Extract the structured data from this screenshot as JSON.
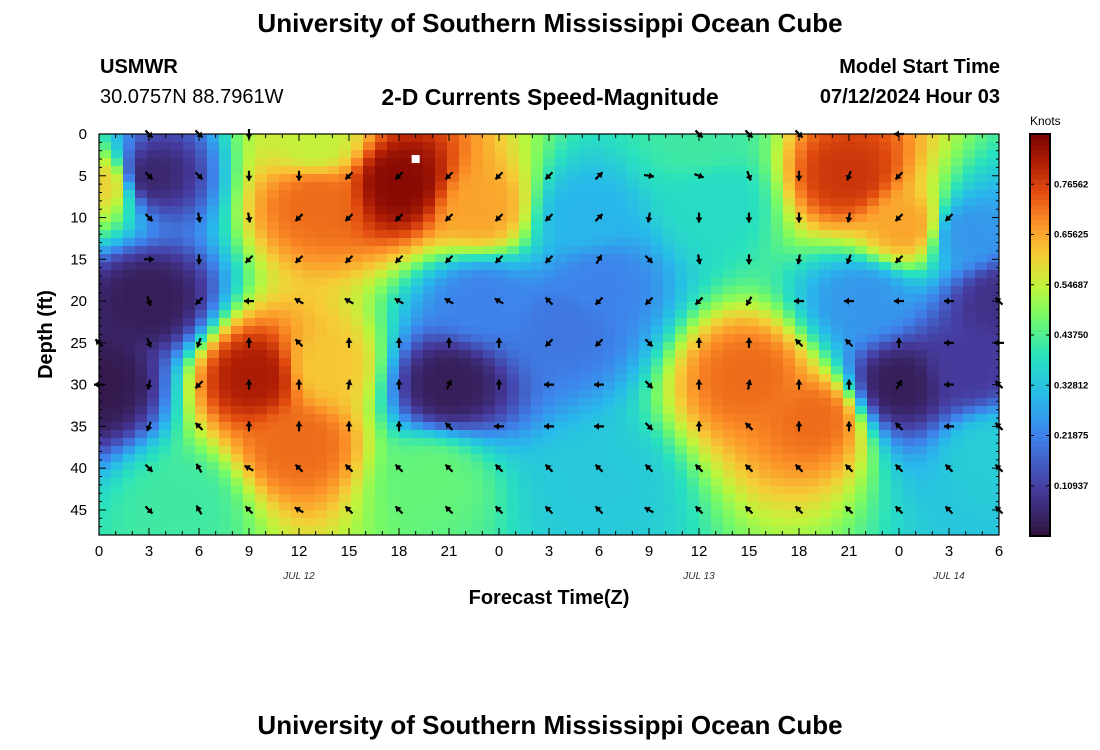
{
  "page": {
    "title_top": "University of Southern Mississippi Ocean Cube",
    "title_bottom": "University of Southern Mississippi Ocean Cube",
    "station": "USMWR",
    "coords": "30.0757N  88.7961W",
    "subtitle": "2-D Currents Speed-Magnitude",
    "model_label": "Model Start Time",
    "model_time": "07/12/2024 Hour 03"
  },
  "chart_data": {
    "type": "heatmap",
    "title": "2-D Currents Speed-Magnitude",
    "xlabel": "Forecast Time(Z)",
    "ylabel": "Depth (ft)",
    "x_ticks": [
      "0",
      "3",
      "6",
      "9",
      "12",
      "15",
      "18",
      "21",
      "0",
      "3",
      "6",
      "9",
      "12",
      "15",
      "18",
      "21",
      "0",
      "3",
      "6"
    ],
    "x_range_hours": [
      0,
      54
    ],
    "date_labels": [
      {
        "text": "JUL 12",
        "hour": 12
      },
      {
        "text": "JUL 13",
        "hour": 36
      },
      {
        "text": "JUL 14",
        "hour": 51
      }
    ],
    "y_ticks": [
      0,
      5,
      10,
      15,
      20,
      25,
      30,
      35,
      40,
      45
    ],
    "y_range_ft": [
      0,
      48
    ],
    "colorbar": {
      "label": "Knots",
      "range": [
        0.0,
        0.875
      ],
      "tick_values": [
        0.10937,
        0.21875,
        0.32812,
        0.4375,
        0.54687,
        0.65625,
        0.76562
      ],
      "tick_labels": [
        "0.10937",
        "0.21875",
        "0.32812",
        "0.43750",
        "0.54687",
        "0.65625",
        "0.76562"
      ]
    },
    "speed_centers_knots": [
      {
        "hour": 18,
        "depth": 6,
        "speed": 0.86
      },
      {
        "hour": 13,
        "depth": 8,
        "speed": 0.72
      },
      {
        "hour": 23,
        "depth": 9,
        "speed": 0.66
      },
      {
        "hour": 13,
        "depth": 1,
        "speed": 0.55
      },
      {
        "hour": 0.3,
        "depth": 6,
        "speed": 0.6
      },
      {
        "hour": 45,
        "depth": 5,
        "speed": 0.78
      },
      {
        "hour": 48.5,
        "depth": 11,
        "speed": 0.66
      },
      {
        "hour": 9.5,
        "depth": 29,
        "speed": 0.82
      },
      {
        "hour": 12,
        "depth": 37,
        "speed": 0.72
      },
      {
        "hour": 13.5,
        "depth": 28,
        "speed": 0.62
      },
      {
        "hour": 39,
        "depth": 29,
        "speed": 0.72
      },
      {
        "hour": 43,
        "depth": 34,
        "speed": 0.72
      },
      {
        "hour": 36,
        "depth": 1,
        "speed": 0.42
      },
      {
        "hour": 37,
        "depth": 8,
        "speed": 0.38
      },
      {
        "hour": 30,
        "depth": 42,
        "speed": 0.34
      },
      {
        "hour": 20,
        "depth": 41,
        "speed": 0.46
      },
      {
        "hour": 3,
        "depth": 5,
        "speed": 0.05
      },
      {
        "hour": 3,
        "depth": 20,
        "speed": 0.03
      },
      {
        "hour": 0,
        "depth": 30,
        "speed": 0.02
      },
      {
        "hour": 21,
        "depth": 30,
        "speed": 0.03
      },
      {
        "hour": 23,
        "depth": 20,
        "speed": 0.22
      },
      {
        "hour": 28,
        "depth": 23,
        "speed": 0.2
      },
      {
        "hour": 30,
        "depth": 18,
        "speed": 0.22
      },
      {
        "hour": 29,
        "depth": 10,
        "speed": 0.3
      },
      {
        "hour": 48,
        "depth": 30,
        "speed": 0.03
      },
      {
        "hour": 52,
        "depth": 28,
        "speed": 0.1
      },
      {
        "hour": 54,
        "depth": 20,
        "speed": 0.08
      },
      {
        "hour": 52,
        "depth": 12,
        "speed": 0.25
      },
      {
        "hour": 46,
        "depth": 20,
        "speed": 0.25
      },
      {
        "hour": 53.5,
        "depth": 38,
        "speed": 0.35
      },
      {
        "hour": 5,
        "depth": 44,
        "speed": 0.42
      }
    ],
    "vector_hours": [
      0,
      3,
      6,
      9,
      12,
      15,
      18,
      21,
      24,
      27,
      30,
      33,
      36,
      39,
      42,
      45,
      48,
      51,
      54
    ],
    "vector_depths": [
      0,
      5,
      10,
      15,
      20,
      25,
      30,
      35,
      40,
      45
    ],
    "vector_directions_deg": [
      [
        null,
        135,
        135,
        180,
        null,
        null,
        null,
        null,
        null,
        null,
        null,
        null,
        135,
        135,
        135,
        null,
        270,
        null,
        null
      ],
      [
        null,
        135,
        135,
        180,
        180,
        225,
        225,
        225,
        225,
        225,
        45,
        100,
        110,
        160,
        180,
        200,
        225,
        null,
        null
      ],
      [
        null,
        135,
        170,
        170,
        225,
        225,
        225,
        225,
        225,
        225,
        45,
        190,
        180,
        180,
        180,
        190,
        225,
        225,
        null
      ],
      [
        null,
        90,
        180,
        225,
        225,
        225,
        225,
        225,
        225,
        225,
        30,
        135,
        170,
        180,
        190,
        200,
        225,
        null,
        null
      ],
      [
        null,
        160,
        225,
        270,
        300,
        300,
        300,
        300,
        300,
        315,
        225,
        225,
        225,
        210,
        270,
        270,
        270,
        270,
        315
      ],
      [
        315,
        160,
        200,
        0,
        315,
        0,
        0,
        0,
        0,
        225,
        225,
        135,
        0,
        0,
        315,
        315,
        0,
        270,
        270
      ],
      [
        270,
        190,
        225,
        0,
        0,
        10,
        0,
        25,
        0,
        270,
        270,
        135,
        0,
        10,
        0,
        0,
        30,
        270,
        315
      ],
      [
        null,
        200,
        315,
        0,
        0,
        0,
        0,
        315,
        270,
        270,
        270,
        135,
        0,
        315,
        0,
        0,
        315,
        270,
        315
      ],
      [
        null,
        135,
        330,
        300,
        315,
        315,
        315,
        315,
        315,
        315,
        315,
        315,
        315,
        315,
        315,
        315,
        315,
        315,
        315
      ],
      [
        null,
        135,
        330,
        315,
        300,
        315,
        315,
        315,
        315,
        315,
        315,
        300,
        315,
        315,
        315,
        315,
        315,
        315,
        315
      ]
    ],
    "marker": {
      "hour": 19,
      "depth": 3,
      "shape": "white-square"
    }
  }
}
